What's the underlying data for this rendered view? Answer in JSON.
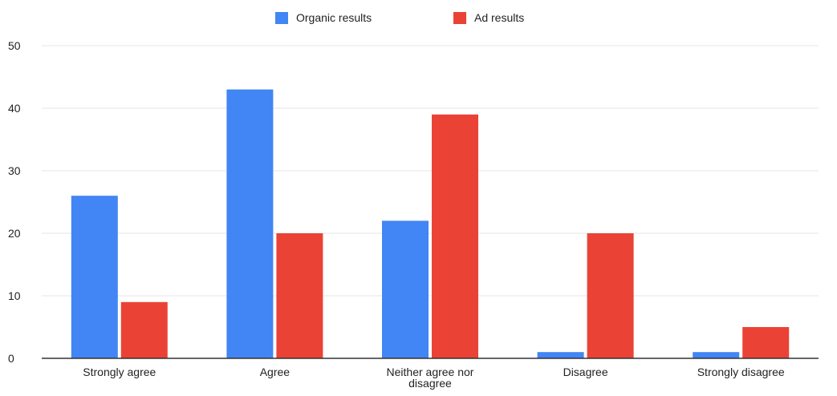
{
  "chart_data": {
    "type": "bar",
    "title": "",
    "xlabel": "",
    "ylabel": "",
    "categories": [
      [
        "Strongly agree"
      ],
      [
        "Agree"
      ],
      [
        "Neither agree nor",
        "disagree"
      ],
      [
        "Disagree"
      ],
      [
        "Strongly disagree"
      ]
    ],
    "series": [
      {
        "name": "Organic results",
        "color": "#4285F4",
        "values": [
          26,
          43,
          22,
          1,
          1
        ]
      },
      {
        "name": "Ad results",
        "color": "#EA4335",
        "values": [
          9,
          20,
          39,
          20,
          5
        ]
      }
    ],
    "ylim": [
      0,
      50
    ],
    "yticks": [
      0,
      10,
      20,
      30,
      40,
      50
    ],
    "grid": true,
    "legend_position": "top-center"
  }
}
